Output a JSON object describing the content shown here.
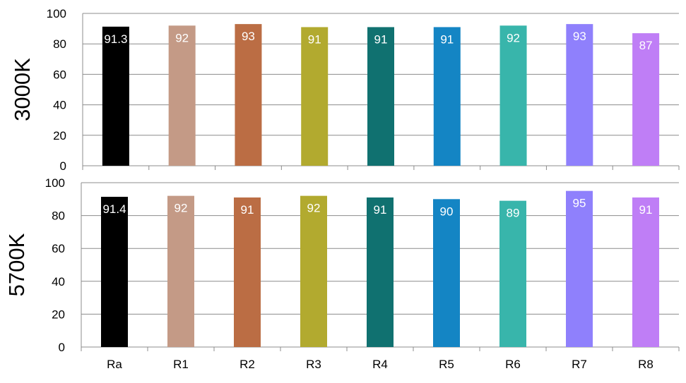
{
  "chart_data": [
    {
      "type": "bar",
      "ylabel": "3000K",
      "ylim": [
        0,
        100
      ],
      "yticks": [
        0,
        20,
        40,
        60,
        80,
        100
      ],
      "grid": true,
      "legend": "none",
      "categories": [
        "Ra",
        "R1",
        "R2",
        "R3",
        "R4",
        "R5",
        "R6",
        "R7",
        "R8"
      ],
      "values": [
        91.3,
        92,
        93,
        91,
        91,
        91,
        92,
        93,
        87
      ],
      "data_labels": [
        "91.3",
        "92",
        "93",
        "91",
        "91",
        "91",
        "92",
        "93",
        "87"
      ],
      "colors": [
        "#000000",
        "#c49a86",
        "#bb6d44",
        "#b2aa2f",
        "#107170",
        "#1485c4",
        "#38b5ab",
        "#8f80fc",
        "#bf7ef6"
      ]
    },
    {
      "type": "bar",
      "ylabel": "5700K",
      "ylim": [
        0,
        100
      ],
      "yticks": [
        0,
        20,
        40,
        60,
        80,
        100
      ],
      "grid": true,
      "legend": "none",
      "categories": [
        "Ra",
        "R1",
        "R2",
        "R3",
        "R4",
        "R5",
        "R6",
        "R7",
        "R8"
      ],
      "values": [
        91.4,
        92,
        91,
        92,
        91,
        90,
        89,
        95,
        91
      ],
      "data_labels": [
        "91.4",
        "92",
        "91",
        "92",
        "91",
        "90",
        "89",
        "95",
        "91"
      ],
      "colors": [
        "#000000",
        "#c49a86",
        "#bb6d44",
        "#b2aa2f",
        "#107170",
        "#1485c4",
        "#38b5ab",
        "#8f80fc",
        "#bf7ef6"
      ]
    }
  ]
}
